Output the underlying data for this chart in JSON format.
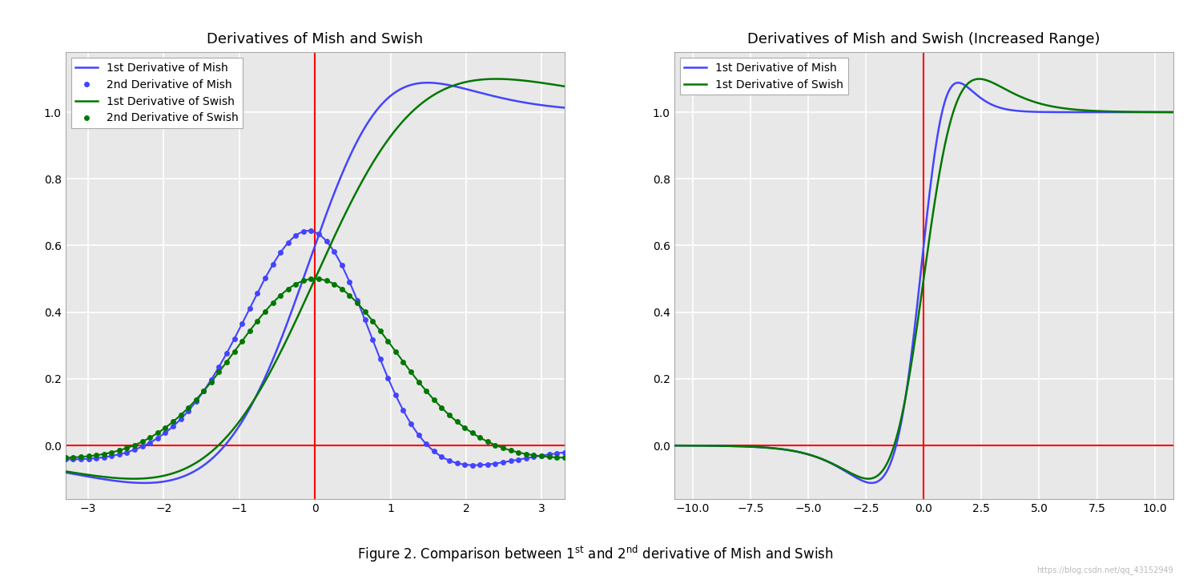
{
  "title1": "Derivatives of Mish and Swish",
  "title2": "Derivatives of Mish and Swish (Increased Range)",
  "watermark": "https://blog.csdn.net/qq_43152949",
  "xlim1": [
    -3.3,
    3.3
  ],
  "ylim1": [
    -0.16,
    1.18
  ],
  "xlim2": [
    -10.8,
    10.8
  ],
  "ylim2": [
    -0.16,
    1.18
  ],
  "xticks1": [
    -3,
    -2,
    -1,
    0,
    1,
    2,
    3
  ],
  "xticks2": [
    -10.0,
    -7.5,
    -5.0,
    -2.5,
    0.0,
    2.5,
    5.0,
    7.5,
    10.0
  ],
  "yticks": [
    0.0,
    0.2,
    0.4,
    0.6,
    0.8,
    1.0
  ],
  "color_mish": "#4444ff",
  "color_swish": "#007700",
  "legend1": [
    "1st Derivative of Mish",
    "2nd Derivative of Mish",
    "1st Derivative of Swish",
    "2nd Derivative of Swish"
  ],
  "legend2": [
    "1st Derivative of Mish",
    "1st Derivative of Swish"
  ],
  "background": "#e8e8e8",
  "grid_color": "white",
  "axline_color": "red"
}
